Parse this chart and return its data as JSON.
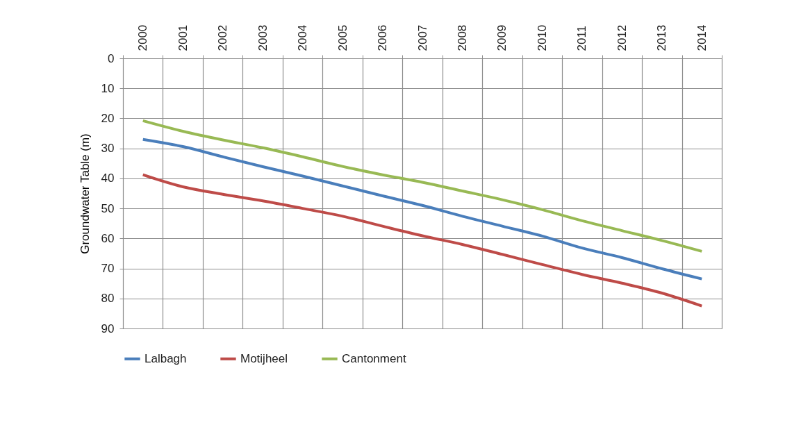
{
  "chart_data": {
    "type": "line",
    "ylabel": "Groundwater Table (m)",
    "categories": [
      "2000",
      "2001",
      "2002",
      "2003",
      "2004",
      "2005",
      "2006",
      "2007",
      "2008",
      "2009",
      "2010",
      "2011",
      "2012",
      "2013",
      "2014"
    ],
    "series": [
      {
        "name": "Lalbagh",
        "color": "#4a7ebb",
        "values": [
          27.0,
          29.4,
          32.8,
          36.1,
          39.2,
          42.5,
          45.8,
          49.0,
          52.6,
          55.9,
          59.2,
          63.2,
          66.4,
          70.1,
          73.5
        ]
      },
      {
        "name": "Motijheel",
        "color": "#be4b48",
        "values": [
          38.8,
          42.8,
          45.3,
          47.5,
          50.0,
          52.6,
          55.9,
          59.1,
          62.0,
          65.3,
          68.7,
          72.0,
          74.9,
          78.2,
          82.5
        ]
      },
      {
        "name": "Cantonment",
        "color": "#98b954",
        "values": [
          20.8,
          24.3,
          27.2,
          29.8,
          32.8,
          36.0,
          38.8,
          41.3,
          44.2,
          47.1,
          50.4,
          54.1,
          57.4,
          60.7,
          64.3
        ]
      }
    ],
    "ylim": [
      90,
      0
    ],
    "yticks": [
      0,
      10,
      20,
      30,
      40,
      50,
      60,
      70,
      80,
      90
    ],
    "grid": true,
    "legend": "bottom"
  }
}
